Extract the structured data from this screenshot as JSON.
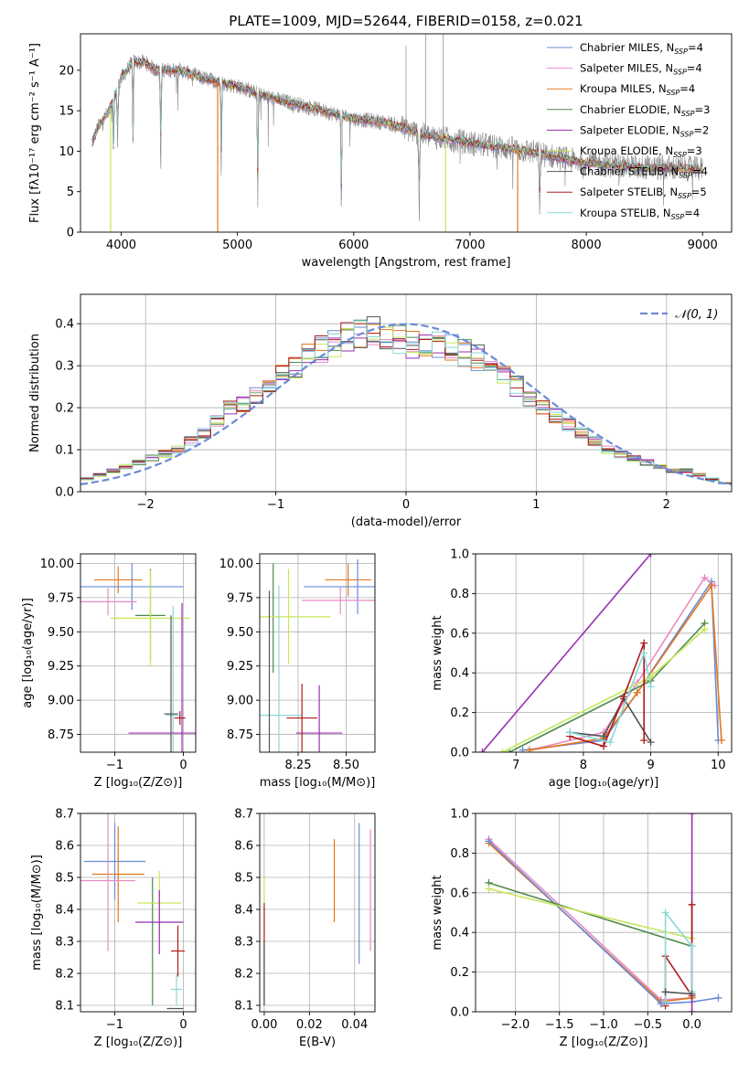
{
  "colors": {
    "chabrier_miles": "#6a8bd8",
    "salpeter_miles": "#e88ac4",
    "kroupa_miles": "#e2781e",
    "chabrier_elodie": "#4e8a4a",
    "salpeter_elodie": "#9a2fb0",
    "kroupa_elodie": "#c5e85a",
    "chabrier_stelib": "#555555",
    "salpeter_stelib": "#b01a1a",
    "kroupa_stelib": "#8ad8d8",
    "data": "#888888",
    "normal": "#6a8bd8"
  },
  "chart_data": [
    {
      "id": "spectrum",
      "type": "line",
      "title": "PLATE=1009, MJD=52644, FIBERID=0158, z=0.021",
      "xlabel": "wavelength [Angstrom, rest frame]",
      "ylabel": "Flux [fλ10⁻¹⁷ erg cm⁻² s⁻¹ A⁻¹]",
      "xlim": [
        3650,
        9250
      ],
      "ylim": [
        0,
        24.5
      ],
      "xticks": [
        "4000",
        "5000",
        "6000",
        "7000",
        "8000",
        "9000"
      ],
      "yticks": [
        "0",
        "5",
        "10",
        "15",
        "20"
      ],
      "legend_position": "top-right",
      "legend": [
        {
          "key": "chabrier_miles",
          "label": "Chabrier MILES, N",
          "sub": "SSP",
          "tail": "=4"
        },
        {
          "key": "salpeter_miles",
          "label": "Salpeter MILES, N",
          "sub": "SSP",
          "tail": "=4"
        },
        {
          "key": "kroupa_miles",
          "label": "Kroupa MILES, N",
          "sub": "SSP",
          "tail": "=4"
        },
        {
          "key": "chabrier_elodie",
          "label": "Chabrier ELODIE, N",
          "sub": "SSP",
          "tail": "=3"
        },
        {
          "key": "salpeter_elodie",
          "label": "Salpeter ELODIE, N",
          "sub": "SSP",
          "tail": "=2"
        },
        {
          "key": "kroupa_elodie",
          "label": "Kroupa ELODIE, N",
          "sub": "SSP",
          "tail": "=3"
        },
        {
          "key": "chabrier_stelib",
          "label": "Chabrier STELIB, N",
          "sub": "SSP",
          "tail": "=4"
        },
        {
          "key": "salpeter_stelib",
          "label": "Salpeter STELIB, N",
          "sub": "SSP",
          "tail": "=5"
        },
        {
          "key": "kroupa_stelib",
          "label": "Kroupa STELIB, N",
          "sub": "SSP",
          "tail": "=4"
        }
      ],
      "continuum_points": [
        [
          3750,
          11
        ],
        [
          3800,
          13
        ],
        [
          3900,
          15
        ],
        [
          4000,
          19
        ],
        [
          4100,
          21
        ],
        [
          4200,
          21
        ],
        [
          4300,
          20
        ],
        [
          4500,
          20
        ],
        [
          4700,
          19
        ],
        [
          5000,
          18
        ],
        [
          5300,
          16.5
        ],
        [
          5600,
          15.5
        ],
        [
          6000,
          14
        ],
        [
          6300,
          13.5
        ],
        [
          6600,
          12
        ],
        [
          7000,
          11
        ],
        [
          7500,
          10
        ],
        [
          8000,
          8.5
        ],
        [
          8500,
          8
        ],
        [
          9000,
          7.8
        ]
      ],
      "dips": [
        [
          3934,
          7
        ],
        [
          3969,
          8
        ],
        [
          4102,
          12
        ],
        [
          4340,
          13
        ],
        [
          4861,
          12
        ],
        [
          5175,
          14
        ],
        [
          5893,
          12.5
        ],
        [
          6563,
          11
        ],
        [
          7600,
          8
        ]
      ],
      "spikes": [
        [
          6450,
          23
        ],
        [
          6620,
          24.5
        ],
        [
          6770,
          24.5
        ]
      ],
      "drop_lines": [
        [
          3910,
          "kroupa_elodie"
        ],
        [
          4830,
          "kroupa_miles"
        ],
        [
          6790,
          "kroupa_elodie"
        ],
        [
          7410,
          "kroupa_miles"
        ]
      ]
    },
    {
      "id": "residuals",
      "type": "histogram",
      "xlabel": "(data-model)/error",
      "ylabel": "Normed distribution",
      "xlim": [
        -2.5,
        2.5
      ],
      "ylim": [
        0,
        0.47
      ],
      "xticks": [
        "−2",
        "−1",
        "0",
        "1",
        "2"
      ],
      "yticks": [
        "0.0",
        "0.1",
        "0.2",
        "0.3",
        "0.4"
      ],
      "legend": "𝒩(0, 1)",
      "legend_position": "top-right",
      "bins": [
        -2.5,
        2.5,
        50
      ],
      "shape": [
        0.03,
        0.04,
        0.05,
        0.06,
        0.07,
        0.08,
        0.09,
        0.1,
        0.12,
        0.14,
        0.17,
        0.2,
        0.21,
        0.23,
        0.25,
        0.28,
        0.3,
        0.32,
        0.34,
        0.35,
        0.37,
        0.38,
        0.38,
        0.37,
        0.36,
        0.35,
        0.34,
        0.35,
        0.34,
        0.33,
        0.32,
        0.3,
        0.28,
        0.25,
        0.22,
        0.2,
        0.18,
        0.16,
        0.14,
        0.12,
        0.1,
        0.09,
        0.08,
        0.07,
        0.06,
        0.05,
        0.05,
        0.04,
        0.03,
        0.02
      ]
    },
    {
      "id": "age_vs_Z",
      "type": "errorbar",
      "xlabel": "Z [log₁₀(Z/Z⊙)]",
      "ylabel": "age  [log₁₀(age/yr)]",
      "xlim": [
        -1.5,
        0.18
      ],
      "ylim": [
        8.62,
        10.07
      ],
      "xticks": [
        "−1",
        "0"
      ],
      "yticks": [
        "8.75",
        "9.00",
        "9.25",
        "9.50",
        "9.75",
        "10.00"
      ],
      "points": [
        {
          "key": "kroupa_miles",
          "x": -0.95,
          "y": 9.88,
          "xerr": 0.35,
          "yerr": 0.1
        },
        {
          "key": "chabrier_miles",
          "x": -0.75,
          "y": 9.83,
          "xerr": 0.75,
          "yerr": 0.17
        },
        {
          "key": "salpeter_miles",
          "x": -1.1,
          "y": 9.72,
          "xerr": 0.42,
          "yerr": 0.1
        },
        {
          "key": "chabrier_elodie",
          "x": -0.48,
          "y": 9.62,
          "xerr": 0.22,
          "yerr": 0.34
        },
        {
          "key": "kroupa_elodie",
          "x": -0.48,
          "y": 9.6,
          "xerr": 0.58,
          "yerr": 0.35
        },
        {
          "key": "kroupa_stelib",
          "x": -0.15,
          "y": 8.89,
          "xerr": 0.1,
          "yerr": 0.8
        },
        {
          "key": "chabrier_stelib",
          "x": -0.18,
          "y": 8.9,
          "xerr": 0.1,
          "yerr": 0.72
        },
        {
          "key": "salpeter_elodie",
          "x": -0.02,
          "y": 8.76,
          "xerr": 0.78,
          "yerr": 0.95
        },
        {
          "key": "salpeter_stelib",
          "x": -0.05,
          "y": 8.87,
          "xerr": 0.08,
          "yerr": 0.05
        }
      ]
    },
    {
      "id": "age_vs_mass",
      "type": "errorbar",
      "xlabel": "mass [log₁₀(M/M⊙)]",
      "ylabel": "",
      "xlim": [
        8.05,
        8.65
      ],
      "ylim": [
        8.62,
        10.07
      ],
      "xticks": [
        "8.25",
        "8.50"
      ],
      "yticks": [
        "8.75",
        "9.00",
        "9.25",
        "9.50",
        "9.75",
        "10.00"
      ],
      "points": [
        {
          "key": "kroupa_miles",
          "x": 8.51,
          "y": 9.88,
          "xerr": 0.12,
          "yerr": 0.12
        },
        {
          "key": "chabrier_miles",
          "x": 8.56,
          "y": 9.83,
          "xerr": 0.28,
          "yerr": 0.2
        },
        {
          "key": "salpeter_miles",
          "x": 8.47,
          "y": 9.73,
          "xerr": 0.2,
          "yerr": 0.1
        },
        {
          "key": "chabrier_elodie",
          "x": 8.12,
          "y": 9.6,
          "xerr": 0.0,
          "yerr": 0.4
        },
        {
          "key": "kroupa_elodie",
          "x": 8.2,
          "y": 9.61,
          "xerr": 0.22,
          "yerr": 0.35
        },
        {
          "key": "kroupa_stelib",
          "x": 8.15,
          "y": 8.89,
          "xerr": 0.12,
          "yerr": 0.95
        },
        {
          "key": "chabrier_stelib",
          "x": 8.1,
          "y": 8.9,
          "xerr": 0.0,
          "yerr": 0.9
        },
        {
          "key": "salpeter_elodie",
          "x": 8.36,
          "y": 8.76,
          "xerr": 0.12,
          "yerr": 0.35
        },
        {
          "key": "salpeter_stelib",
          "x": 8.27,
          "y": 8.87,
          "xerr": 0.08,
          "yerr": 0.25
        }
      ]
    },
    {
      "id": "weight_vs_age",
      "type": "line",
      "xlabel": "age  [log₁₀(age/yr)]",
      "ylabel": "mass weight",
      "xlim": [
        6.4,
        10.2
      ],
      "ylim": [
        0,
        1.0
      ],
      "xticks": [
        "7",
        "8",
        "9",
        "10"
      ],
      "yticks": [
        "0.0",
        "0.2",
        "0.4",
        "0.6",
        "0.8",
        "1.0"
      ],
      "series": [
        {
          "key": "salpeter_elodie",
          "points": [
            [
              6.5,
              0
            ],
            [
              9.0,
              1.0
            ]
          ]
        },
        {
          "key": "chabrier_miles",
          "points": [
            [
              7.1,
              0.01
            ],
            [
              8.3,
              0.06
            ],
            [
              8.8,
              0.3
            ],
            [
              9.9,
              0.86
            ],
            [
              10.0,
              0.06
            ]
          ]
        },
        {
          "key": "salpeter_miles",
          "points": [
            [
              7.2,
              0.01
            ],
            [
              8.3,
              0.1
            ],
            [
              8.8,
              0.35
            ],
            [
              9.8,
              0.88
            ],
            [
              9.95,
              0.84
            ]
          ]
        },
        {
          "key": "kroupa_miles",
          "points": [
            [
              7.2,
              0.01
            ],
            [
              8.3,
              0.07
            ],
            [
              8.8,
              0.3
            ],
            [
              9.9,
              0.84
            ],
            [
              10.05,
              0.06
            ]
          ]
        },
        {
          "key": "chabrier_elodie",
          "points": [
            [
              6.9,
              0
            ],
            [
              9.0,
              0.36
            ],
            [
              9.8,
              0.65
            ]
          ]
        },
        {
          "key": "kroupa_elodie",
          "points": [
            [
              6.8,
              0
            ],
            [
              9.0,
              0.38
            ],
            [
              9.8,
              0.62
            ]
          ]
        },
        {
          "key": "chabrier_stelib",
          "points": [
            [
              7.8,
              0.1
            ],
            [
              8.3,
              0.08
            ],
            [
              8.6,
              0.27
            ],
            [
              9.0,
              0.05
            ]
          ]
        },
        {
          "key": "salpeter_stelib",
          "points": [
            [
              7.8,
              0.08
            ],
            [
              8.3,
              0.03
            ],
            [
              8.6,
              0.28
            ],
            [
              8.9,
              0.55
            ],
            [
              8.9,
              0.06
            ]
          ]
        },
        {
          "key": "kroupa_stelib",
          "points": [
            [
              7.8,
              0.1
            ],
            [
              8.4,
              0.05
            ],
            [
              8.9,
              0.5
            ],
            [
              9.0,
              0.33
            ]
          ]
        }
      ]
    },
    {
      "id": "mass_vs_Z",
      "type": "errorbar",
      "xlabel": "Z [log₁₀(Z/Z⊙)]",
      "ylabel": "mass [log₁₀(M/M⊙)]",
      "xlim": [
        -1.5,
        0.18
      ],
      "ylim": [
        8.08,
        8.7
      ],
      "xticks": [
        "−1",
        "0"
      ],
      "yticks": [
        "8.1",
        "8.2",
        "8.3",
        "8.4",
        "8.5",
        "8.6",
        "8.7"
      ],
      "points": [
        {
          "key": "chabrier_miles",
          "x": -1.0,
          "y": 8.55,
          "xerr": 0.45,
          "yerr": 0.12
        },
        {
          "key": "kroupa_miles",
          "x": -0.95,
          "y": 8.51,
          "xerr": 0.38,
          "yerr": 0.15
        },
        {
          "key": "salpeter_miles",
          "x": -1.1,
          "y": 8.49,
          "xerr": 0.4,
          "yerr": 0.22
        },
        {
          "key": "chabrier_elodie",
          "x": -0.45,
          "y": 8.3,
          "xerr": 0.0,
          "yerr": 0.2
        },
        {
          "key": "kroupa_elodie",
          "x": -0.35,
          "y": 8.42,
          "xerr": 0.32,
          "yerr": 0.1
        },
        {
          "key": "salpeter_elodie",
          "x": -0.35,
          "y": 8.36,
          "xerr": 0.35,
          "yerr": 0.1
        },
        {
          "key": "salpeter_stelib",
          "x": -0.08,
          "y": 8.27,
          "xerr": 0.1,
          "yerr": 0.08
        },
        {
          "key": "kroupa_stelib",
          "x": -0.1,
          "y": 8.15,
          "xerr": 0.08,
          "yerr": 0.05
        },
        {
          "key": "chabrier_stelib",
          "x": -0.12,
          "y": 8.09,
          "xerr": 0.12,
          "yerr": 0.0
        }
      ]
    },
    {
      "id": "mass_vs_ebv",
      "type": "errorbar",
      "xlabel": "E(B-V)",
      "ylabel": "",
      "xlim": [
        -0.002,
        0.049
      ],
      "ylim": [
        8.08,
        8.7
      ],
      "xticks": [
        "0.00",
        "0.02",
        "0.04"
      ],
      "yticks": [
        "8.1",
        "8.2",
        "8.3",
        "8.4",
        "8.5",
        "8.6",
        "8.7"
      ],
      "points": [
        {
          "key": "kroupa_elodie",
          "x": 0.0,
          "y": 8.3,
          "xerr": 0,
          "yerr": 0.2
        },
        {
          "key": "salpeter_stelib",
          "x": 0.0,
          "y": 8.26,
          "xerr": 0,
          "yerr": 0.16
        },
        {
          "key": "chabrier_stelib",
          "x": 0.0,
          "y": 8.2,
          "xerr": 0,
          "yerr": 0.1
        },
        {
          "key": "kroupa_miles",
          "x": 0.031,
          "y": 8.49,
          "xerr": 0,
          "yerr": 0.13
        },
        {
          "key": "chabrier_miles",
          "x": 0.042,
          "y": 8.45,
          "xerr": 0,
          "yerr": 0.22
        },
        {
          "key": "salpeter_miles",
          "x": 0.047,
          "y": 8.46,
          "xerr": 0,
          "yerr": 0.19
        }
      ]
    },
    {
      "id": "weight_vs_Z",
      "type": "line",
      "xlabel": "Z [log₁₀(Z/Z⊙)]",
      "ylabel": "mass weight",
      "xlim": [
        -2.45,
        0.45
      ],
      "ylim": [
        0,
        1.0
      ],
      "xticks": [
        "−2.0",
        "−1.5",
        "−1.0",
        "−0.5",
        "0.0"
      ],
      "yticks": [
        "0.0",
        "0.2",
        "0.4",
        "0.6",
        "0.8",
        "1.0"
      ],
      "series": [
        {
          "key": "salpeter_miles",
          "points": [
            [
              -2.3,
              0.87
            ],
            [
              -0.35,
              0.06
            ],
            [
              0.0,
              0.07
            ]
          ]
        },
        {
          "key": "kroupa_miles",
          "points": [
            [
              -2.3,
              0.85
            ],
            [
              -0.35,
              0.05
            ],
            [
              0.0,
              0.07
            ]
          ]
        },
        {
          "key": "chabrier_miles",
          "points": [
            [
              -2.3,
              0.86
            ],
            [
              -0.35,
              0.04
            ],
            [
              0.0,
              0.05
            ],
            [
              0.3,
              0.07
            ]
          ]
        },
        {
          "key": "chabrier_elodie",
          "points": [
            [
              -2.3,
              0.65
            ],
            [
              0.0,
              0.33
            ]
          ]
        },
        {
          "key": "kroupa_elodie",
          "points": [
            [
              -2.3,
              0.62
            ],
            [
              0.0,
              0.37
            ]
          ]
        },
        {
          "key": "salpeter_elodie",
          "points": [
            [
              0.0,
              0.0
            ],
            [
              0.0,
              1.0
            ]
          ]
        },
        {
          "key": "salpeter_stelib",
          "points": [
            [
              -0.3,
              0.03
            ],
            [
              -0.3,
              0.28
            ],
            [
              0.0,
              0.08
            ],
            [
              0.0,
              0.54
            ]
          ]
        },
        {
          "key": "kroupa_stelib",
          "points": [
            [
              -0.3,
              0.05
            ],
            [
              -0.3,
              0.5
            ],
            [
              0.0,
              0.33
            ],
            [
              0.0,
              0.1
            ]
          ]
        },
        {
          "key": "chabrier_stelib",
          "points": [
            [
              -0.3,
              0.1
            ],
            [
              0.0,
              0.09
            ]
          ]
        }
      ]
    }
  ]
}
